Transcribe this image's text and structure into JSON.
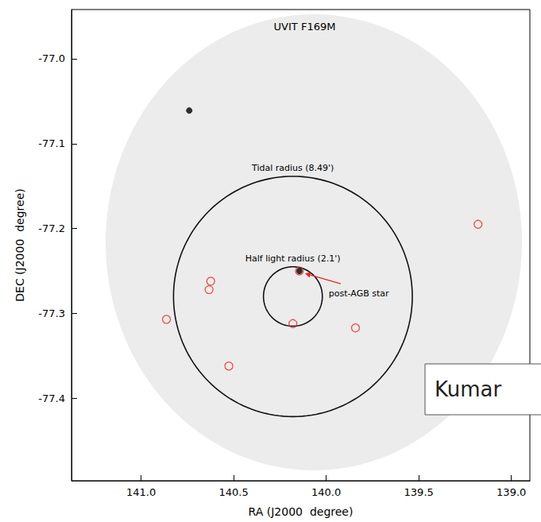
{
  "chart_data": {
    "type": "scatter",
    "title": "UVIT F169M",
    "xlabel": "RA (J2000  degree)",
    "ylabel": "DEC (J2000  degree)",
    "xlim": [
      141.376,
      138.9
    ],
    "xticks": [
      {
        "value": 141.0,
        "label": "141.0"
      },
      140.5,
      {
        "value": 140.0,
        "label": "140.0"
      },
      139.5,
      {
        "value": 139.0,
        "label": "139.0"
      }
    ],
    "ylim": [
      -77.497,
      -76.942
    ],
    "yticks": [
      -77.4,
      -77.3,
      -77.2,
      -77.1,
      {
        "value": -77.0,
        "label": "-77.0"
      }
    ],
    "grid": false,
    "series": [
      {
        "marker": "dot",
        "color": "#000000",
        "x": [
          140.74,
          140.145
        ],
        "y": [
          -77.061,
          -77.25
        ]
      },
      {
        "marker": "open_circle",
        "color": "#e8281e",
        "x": [
          139.18,
          140.624,
          140.633,
          140.863,
          140.526,
          140.18,
          139.842,
          140.145
        ],
        "y": [
          -77.195,
          -77.262,
          -77.272,
          -77.307,
          -77.362,
          -77.312,
          -77.317,
          -77.25
        ]
      }
    ],
    "circles": [
      {
        "label": "Tidal radius (8.49')",
        "center": [
          140.18,
          -77.28
        ],
        "radius": [
          0.645,
          0.1415
        ]
      },
      {
        "label": "Half light radius (2.1')",
        "center": [
          140.18,
          -77.28
        ],
        "radius": [
          0.159,
          0.035
        ]
      }
    ],
    "arrow": {
      "text": "post-AGB star",
      "target": [
        140.145,
        -77.25
      ]
    },
    "box_text": "Kumar"
  }
}
